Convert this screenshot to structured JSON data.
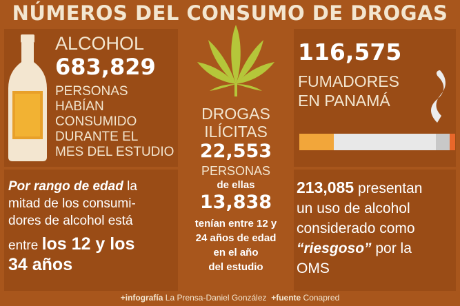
{
  "title": "NÚMEROS DEL CONSUMO DE DROGAS",
  "alcohol": {
    "label": "ALCOHOL",
    "number": "683,829",
    "lines": [
      "PERSONAS",
      "HABÍAN",
      "CONSUMIDO",
      "DURANTE EL",
      "MES DEL ESTUDIO"
    ]
  },
  "drogas": {
    "label_1": "DROGAS",
    "label_2": "ILÍCITAS",
    "number": "22,553",
    "personas": "PERSONAS",
    "de_ellas": "de ellas",
    "number_2": "13,838",
    "lines": [
      "tenían entre 12 y",
      "24 años de edad",
      "en el año",
      "del estudio"
    ]
  },
  "fumadores": {
    "number": "116,575",
    "line_1": "FUMADORES",
    "line_2": "EN PANAMÁ"
  },
  "edad": {
    "emph": "Por rango de edad",
    "t1": "la",
    "t2": "mitad de los consumi-",
    "t3": "dores de alcohol está",
    "t4": "entre",
    "bold_1": "los 12  y los",
    "bold_2": "34 años"
  },
  "riesgo": {
    "number": "213,085",
    "t1": "presentan",
    "t2": "un uso de alcohol",
    "t3": "considerado como",
    "emph": "“riesgoso”",
    "t4": "por  la",
    "t5": "OMS"
  },
  "footer": {
    "infografia_label": "+infografía",
    "infografia_value": "La Prensa-Daniel González",
    "fuente_label": "+fuente",
    "fuente_value": "Conapred"
  },
  "colors": {
    "background": "#a8561c",
    "panel": "#9a4c16",
    "cream": "#f3e6d0",
    "leaf": "#b5c63a"
  },
  "icons": [
    "bottle-icon",
    "cannabis-leaf-icon",
    "cigarette-icon",
    "smoke-icon"
  ]
}
